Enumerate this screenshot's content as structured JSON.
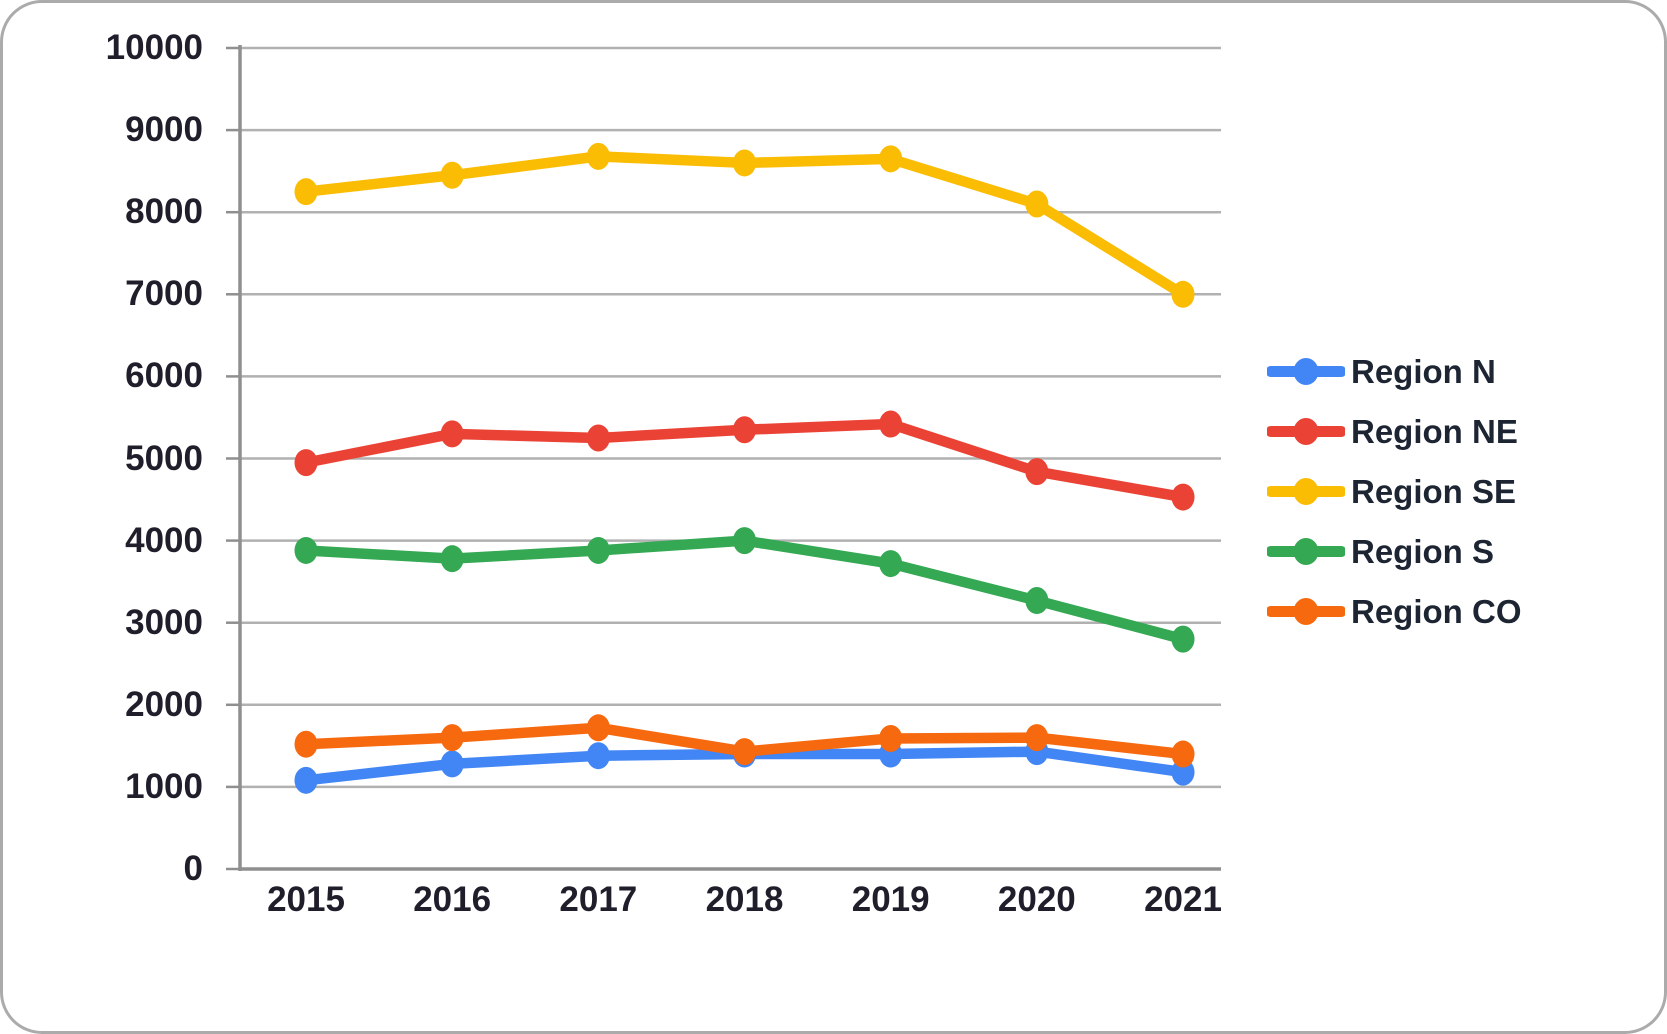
{
  "chart_data": {
    "type": "line",
    "title": "",
    "xlabel": "",
    "ylabel": "",
    "x_tick_labels": [
      "2015",
      "2016",
      "2017",
      "2018",
      "2019",
      "2020",
      "2021"
    ],
    "y_tick_labels": [
      "0",
      "1000",
      "2000",
      "3000",
      "4000",
      "5000",
      "6000",
      "7000",
      "8000",
      "9000",
      "10000"
    ],
    "ylim": [
      0,
      10000
    ],
    "ytick_step": 1000,
    "grid": true,
    "legend_position": "right",
    "series": [
      {
        "name": "Region N",
        "color": "#4285F4",
        "values": [
          1080,
          1280,
          1380,
          1400,
          1400,
          1430,
          1180
        ]
      },
      {
        "name": "Region NE",
        "color": "#EA4335",
        "values": [
          4950,
          5300,
          5250,
          5350,
          5420,
          4840,
          4530
        ]
      },
      {
        "name": "Region SE",
        "color": "#FBBC04",
        "values": [
          8250,
          8450,
          8680,
          8600,
          8650,
          8100,
          7000
        ]
      },
      {
        "name": "Region S",
        "color": "#34A853",
        "values": [
          3880,
          3780,
          3880,
          4000,
          3720,
          3270,
          2800
        ]
      },
      {
        "name": "Region CO",
        "color": "#F6690F",
        "values": [
          1520,
          1600,
          1720,
          1430,
          1590,
          1600,
          1400
        ]
      }
    ],
    "colors": {
      "gridline": "#b1b1b1",
      "axis": "#8f8f8f",
      "tick_text": "#211e2b",
      "legend_text": "#1d2533"
    }
  }
}
